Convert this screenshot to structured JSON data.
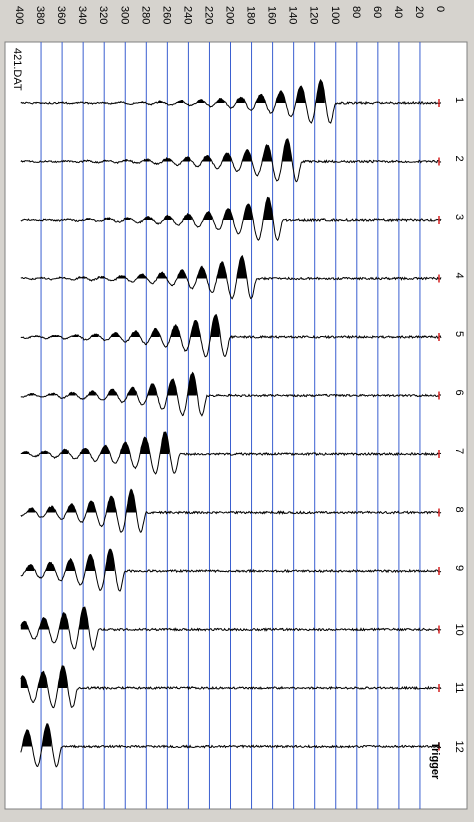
{
  "window": {
    "file_name": "421.DAT"
  },
  "chart_data": {
    "type": "line",
    "title": "",
    "time_axis": {
      "label": "Time",
      "range": [
        0,
        400
      ],
      "ticks": [
        0,
        20,
        40,
        60,
        80,
        100,
        120,
        140,
        160,
        180,
        200,
        220,
        240,
        260,
        280,
        300,
        320,
        340,
        360,
        380,
        400
      ],
      "tick_labels": [
        "0",
        "20",
        "40",
        "60",
        "80",
        "100",
        "120",
        "140",
        "160",
        "180",
        "200",
        "220",
        "240",
        "260",
        "280",
        "300",
        "320",
        "340",
        "360",
        "380",
        "400"
      ]
    },
    "channel_axis": {
      "labels": [
        "1",
        "2",
        "3",
        "4",
        "5",
        "6",
        "7",
        "8",
        "9",
        "10",
        "11",
        "12"
      ]
    },
    "trigger_label": "Trigger",
    "grid": true,
    "series": [
      {
        "name": "1",
        "first_break": 100,
        "peak_time": 118
      },
      {
        "name": "2",
        "first_break": 132,
        "peak_time": 150
      },
      {
        "name": "3",
        "first_break": 150,
        "peak_time": 170
      },
      {
        "name": "4",
        "first_break": 175,
        "peak_time": 195
      },
      {
        "name": "5",
        "first_break": 200,
        "peak_time": 218
      },
      {
        "name": "6",
        "first_break": 222,
        "peak_time": 240
      },
      {
        "name": "7",
        "first_break": 248,
        "peak_time": 268
      },
      {
        "name": "8",
        "first_break": 280,
        "peak_time": 298
      },
      {
        "name": "9",
        "first_break": 300,
        "peak_time": 325
      },
      {
        "name": "10",
        "first_break": 325,
        "peak_time": 345
      },
      {
        "name": "11",
        "first_break": 345,
        "peak_time": 365
      },
      {
        "name": "12",
        "first_break": 360,
        "peak_time": 385
      }
    ]
  }
}
